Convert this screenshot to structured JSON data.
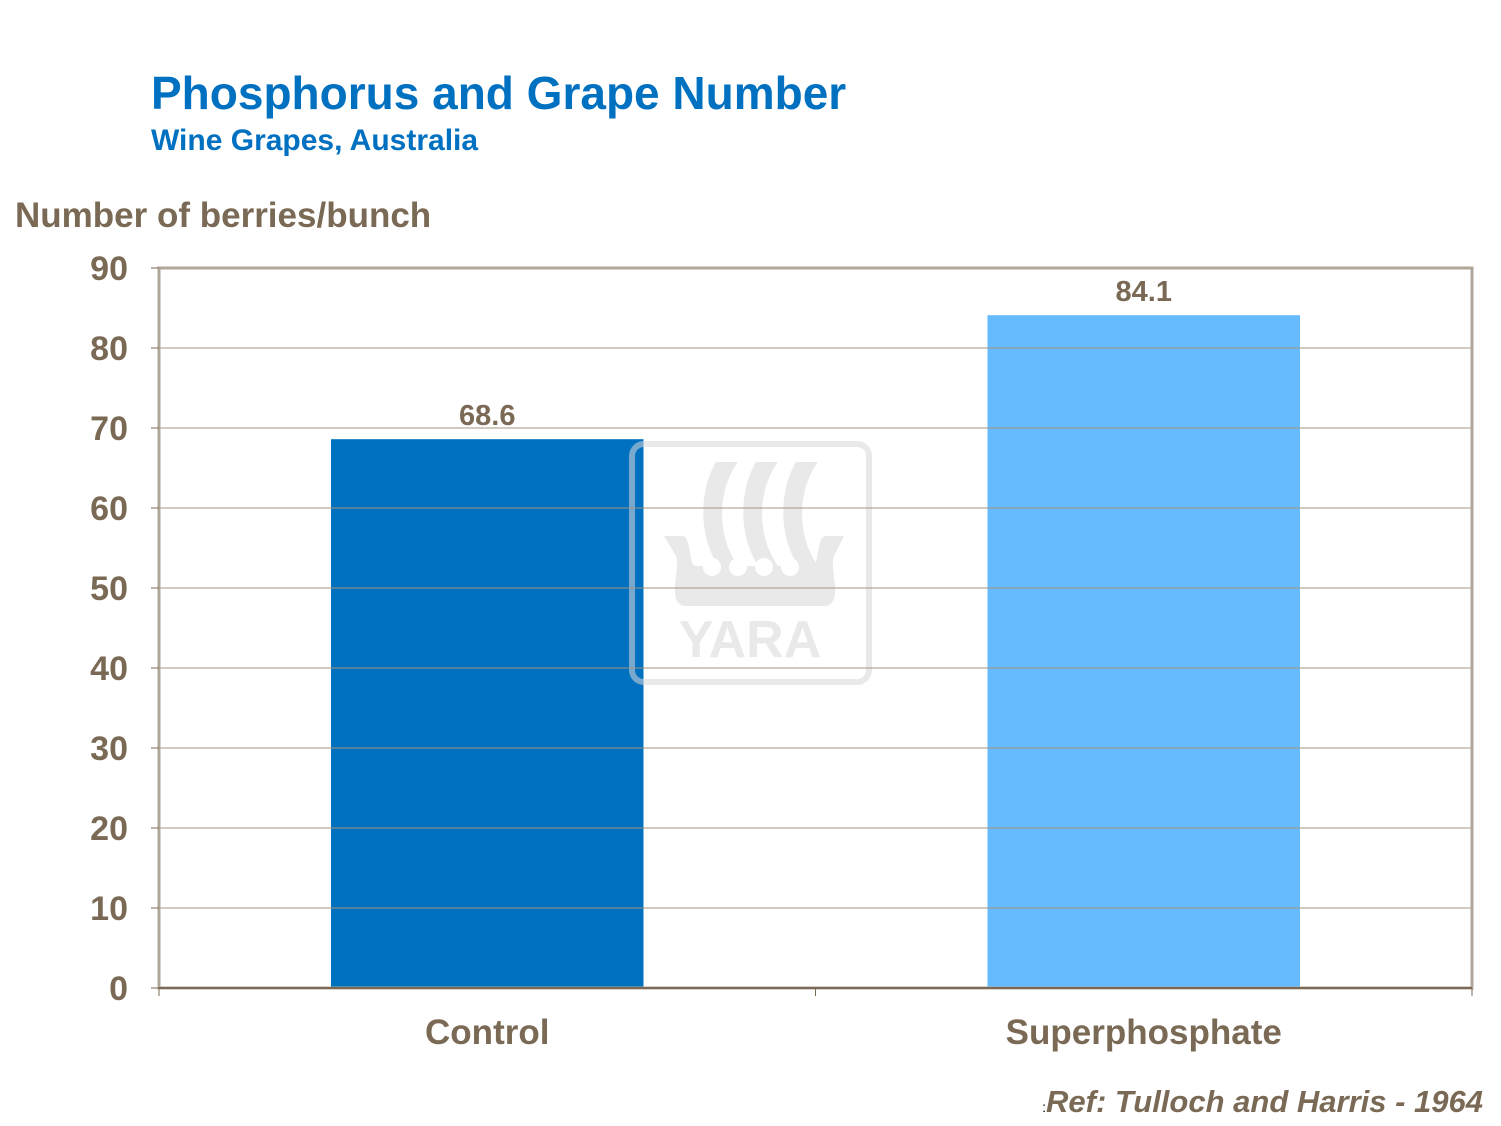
{
  "chart_data": {
    "type": "bar",
    "title": "Phosphorus and Grape Number",
    "subtitle": "Wine Grapes, Australia",
    "ylabel": "Number of berries/bunch",
    "xlabel": "",
    "categories": [
      "Control",
      "Superphosphate"
    ],
    "values": [
      68.6,
      84.1
    ],
    "data_labels": [
      "68.6",
      "84.1"
    ],
    "bar_colors": [
      "#0070c0",
      "#66bbff"
    ],
    "ylim": [
      0,
      90
    ],
    "yticks": [
      "0",
      "10",
      "20",
      "30",
      "40",
      "50",
      "60",
      "70",
      "80",
      "90"
    ],
    "grid": true,
    "legend": "none"
  },
  "reference": {
    "prefix": ":",
    "text": "Ref: Tulloch and Harris - 1964"
  },
  "watermark": {
    "text": "YARA",
    "icon": "yara-viking-ship-logo"
  },
  "colors": {
    "title": "#0070c0",
    "text": "#7a6a55",
    "grid": "#a09480"
  }
}
